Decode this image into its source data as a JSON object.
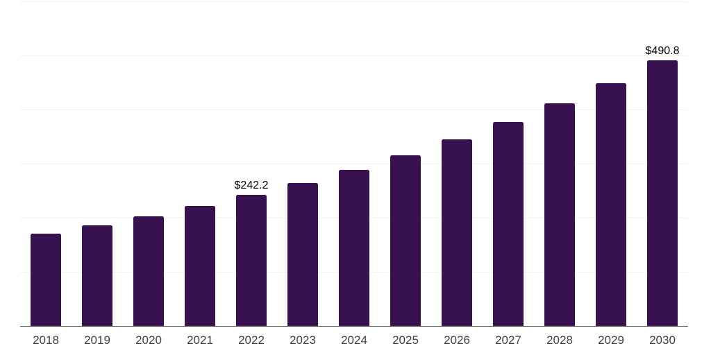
{
  "chart_data": {
    "type": "bar",
    "title": "",
    "xlabel": "",
    "ylabel": "",
    "categories": [
      "2018",
      "2019",
      "2020",
      "2021",
      "2022",
      "2023",
      "2024",
      "2025",
      "2026",
      "2027",
      "2028",
      "2029",
      "2030"
    ],
    "values": [
      170.3,
      186.0,
      203.2,
      221.9,
      242.2,
      264.5,
      288.9,
      315.6,
      344.7,
      376.5,
      411.2,
      449.2,
      490.8
    ],
    "data_labels": {
      "2022": "$242.2",
      "2030": "$490.8"
    },
    "value_prefix": "$",
    "ylim": [
      0,
      600
    ],
    "gridline_step": 100,
    "grid": true,
    "legend": false,
    "y_tick_labels_visible": false,
    "colors": {
      "bar": "#38124E",
      "gridline": "#F2F2F2",
      "axis_line": "#3A3A3A",
      "tick_label": "#404040",
      "value_label": "#000000"
    }
  }
}
